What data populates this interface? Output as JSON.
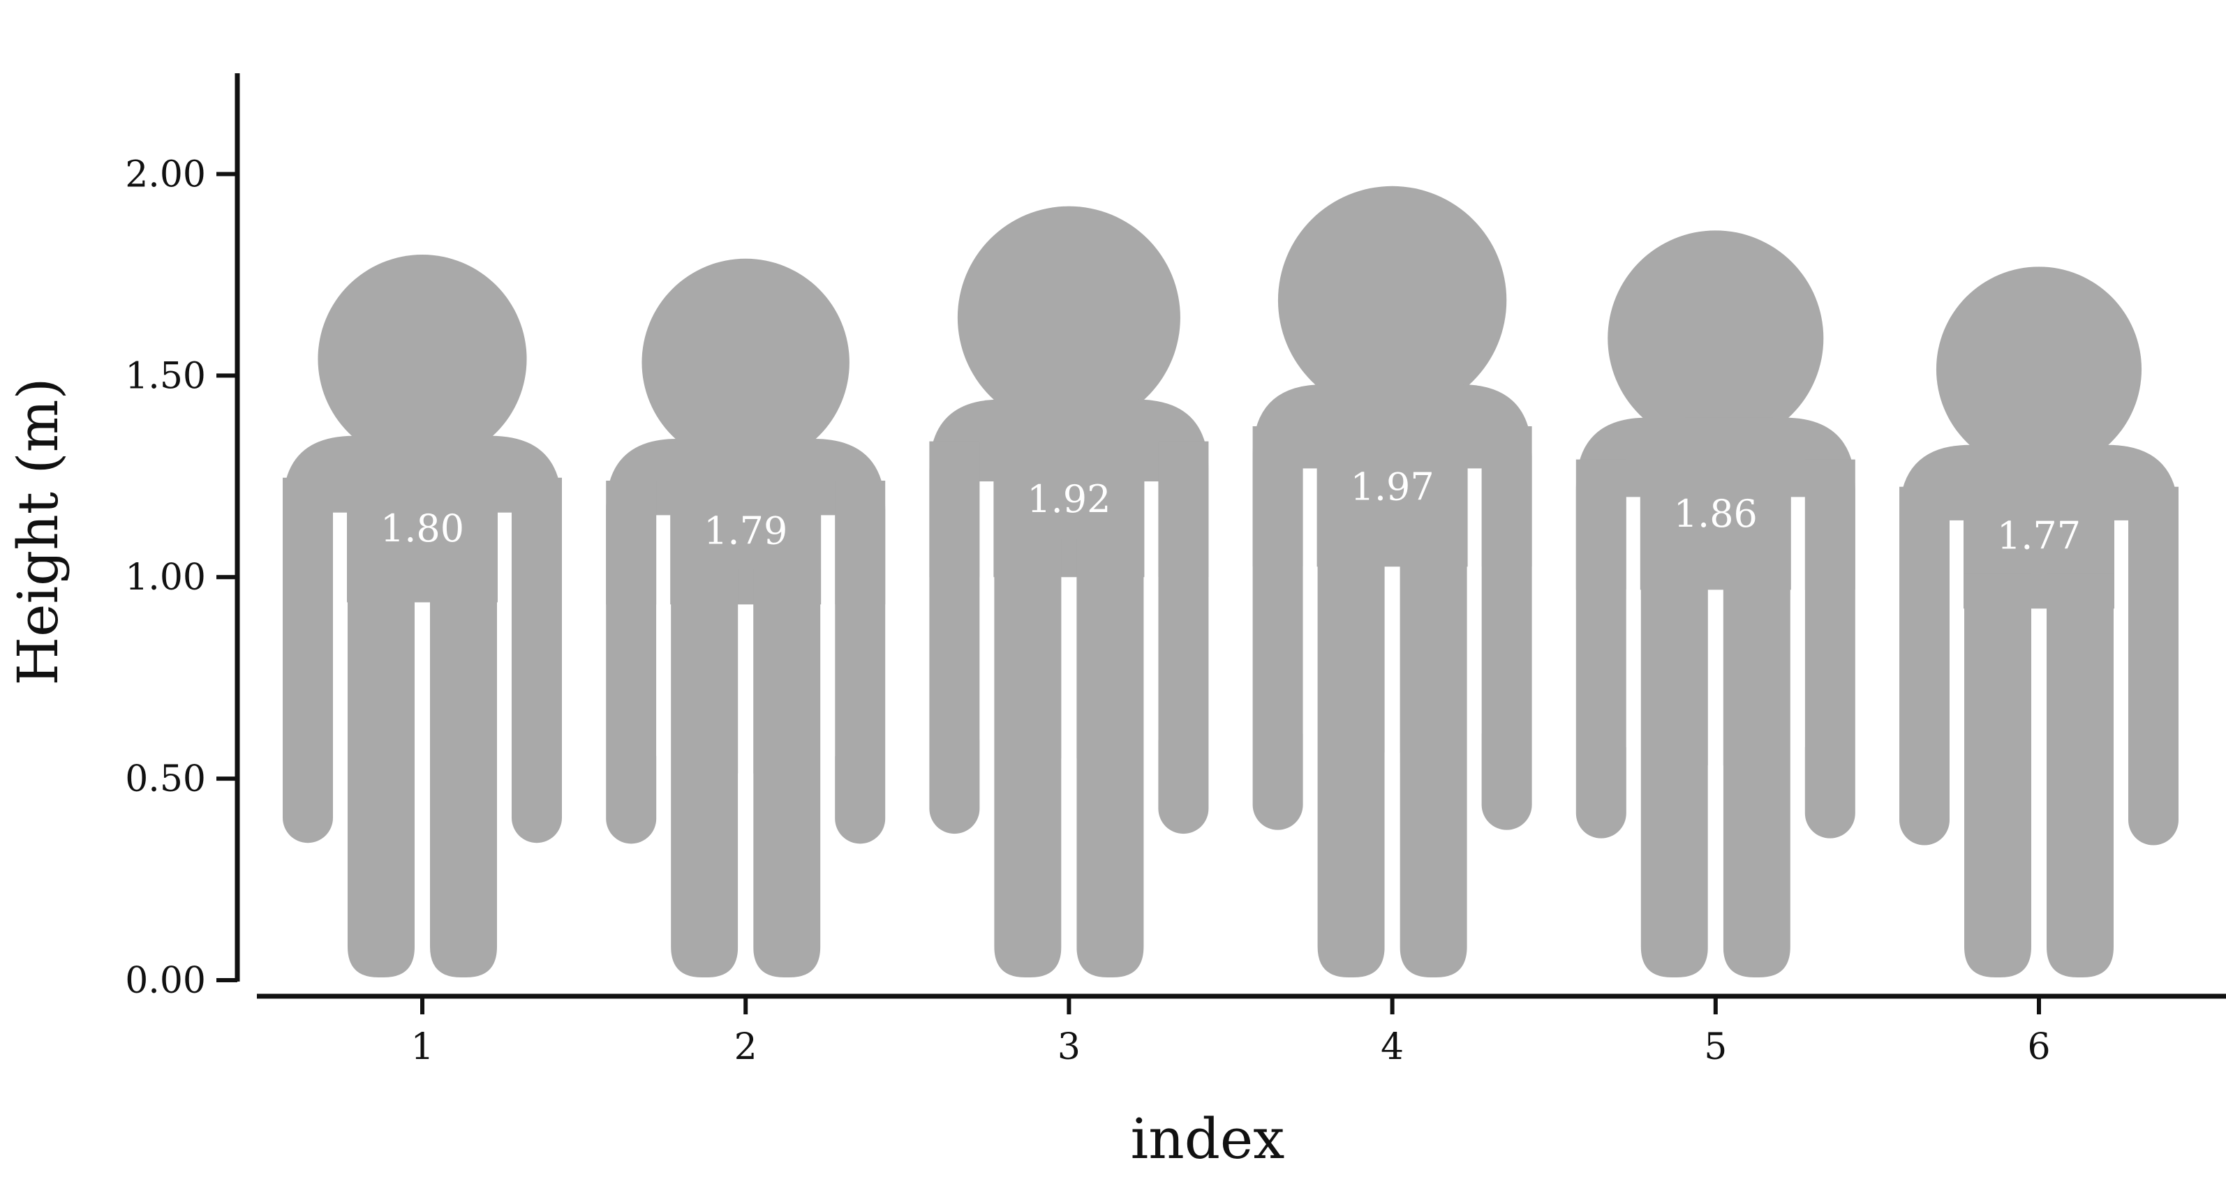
{
  "chart_data": {
    "type": "bar",
    "pictogram": "person",
    "categories": [
      "1",
      "2",
      "3",
      "4",
      "5",
      "6"
    ],
    "values": [
      1.8,
      1.79,
      1.92,
      1.97,
      1.86,
      1.77
    ],
    "value_labels": [
      "1.80",
      "1.79",
      "1.92",
      "1.97",
      "1.86",
      "1.77"
    ],
    "title": "",
    "xlabel": "index",
    "ylabel": "Height (m)",
    "ylim": [
      0,
      2.25
    ],
    "yticks": [
      0,
      0.5,
      1.0,
      1.5,
      2.0
    ],
    "ytick_labels": [
      "0.00",
      "0.50",
      "1.00",
      "1.50",
      "2.00"
    ],
    "grid": false,
    "legend": "none",
    "colors": {
      "figure": "#a9a9a9",
      "axis": "#111111",
      "label": "#ffffff"
    }
  }
}
